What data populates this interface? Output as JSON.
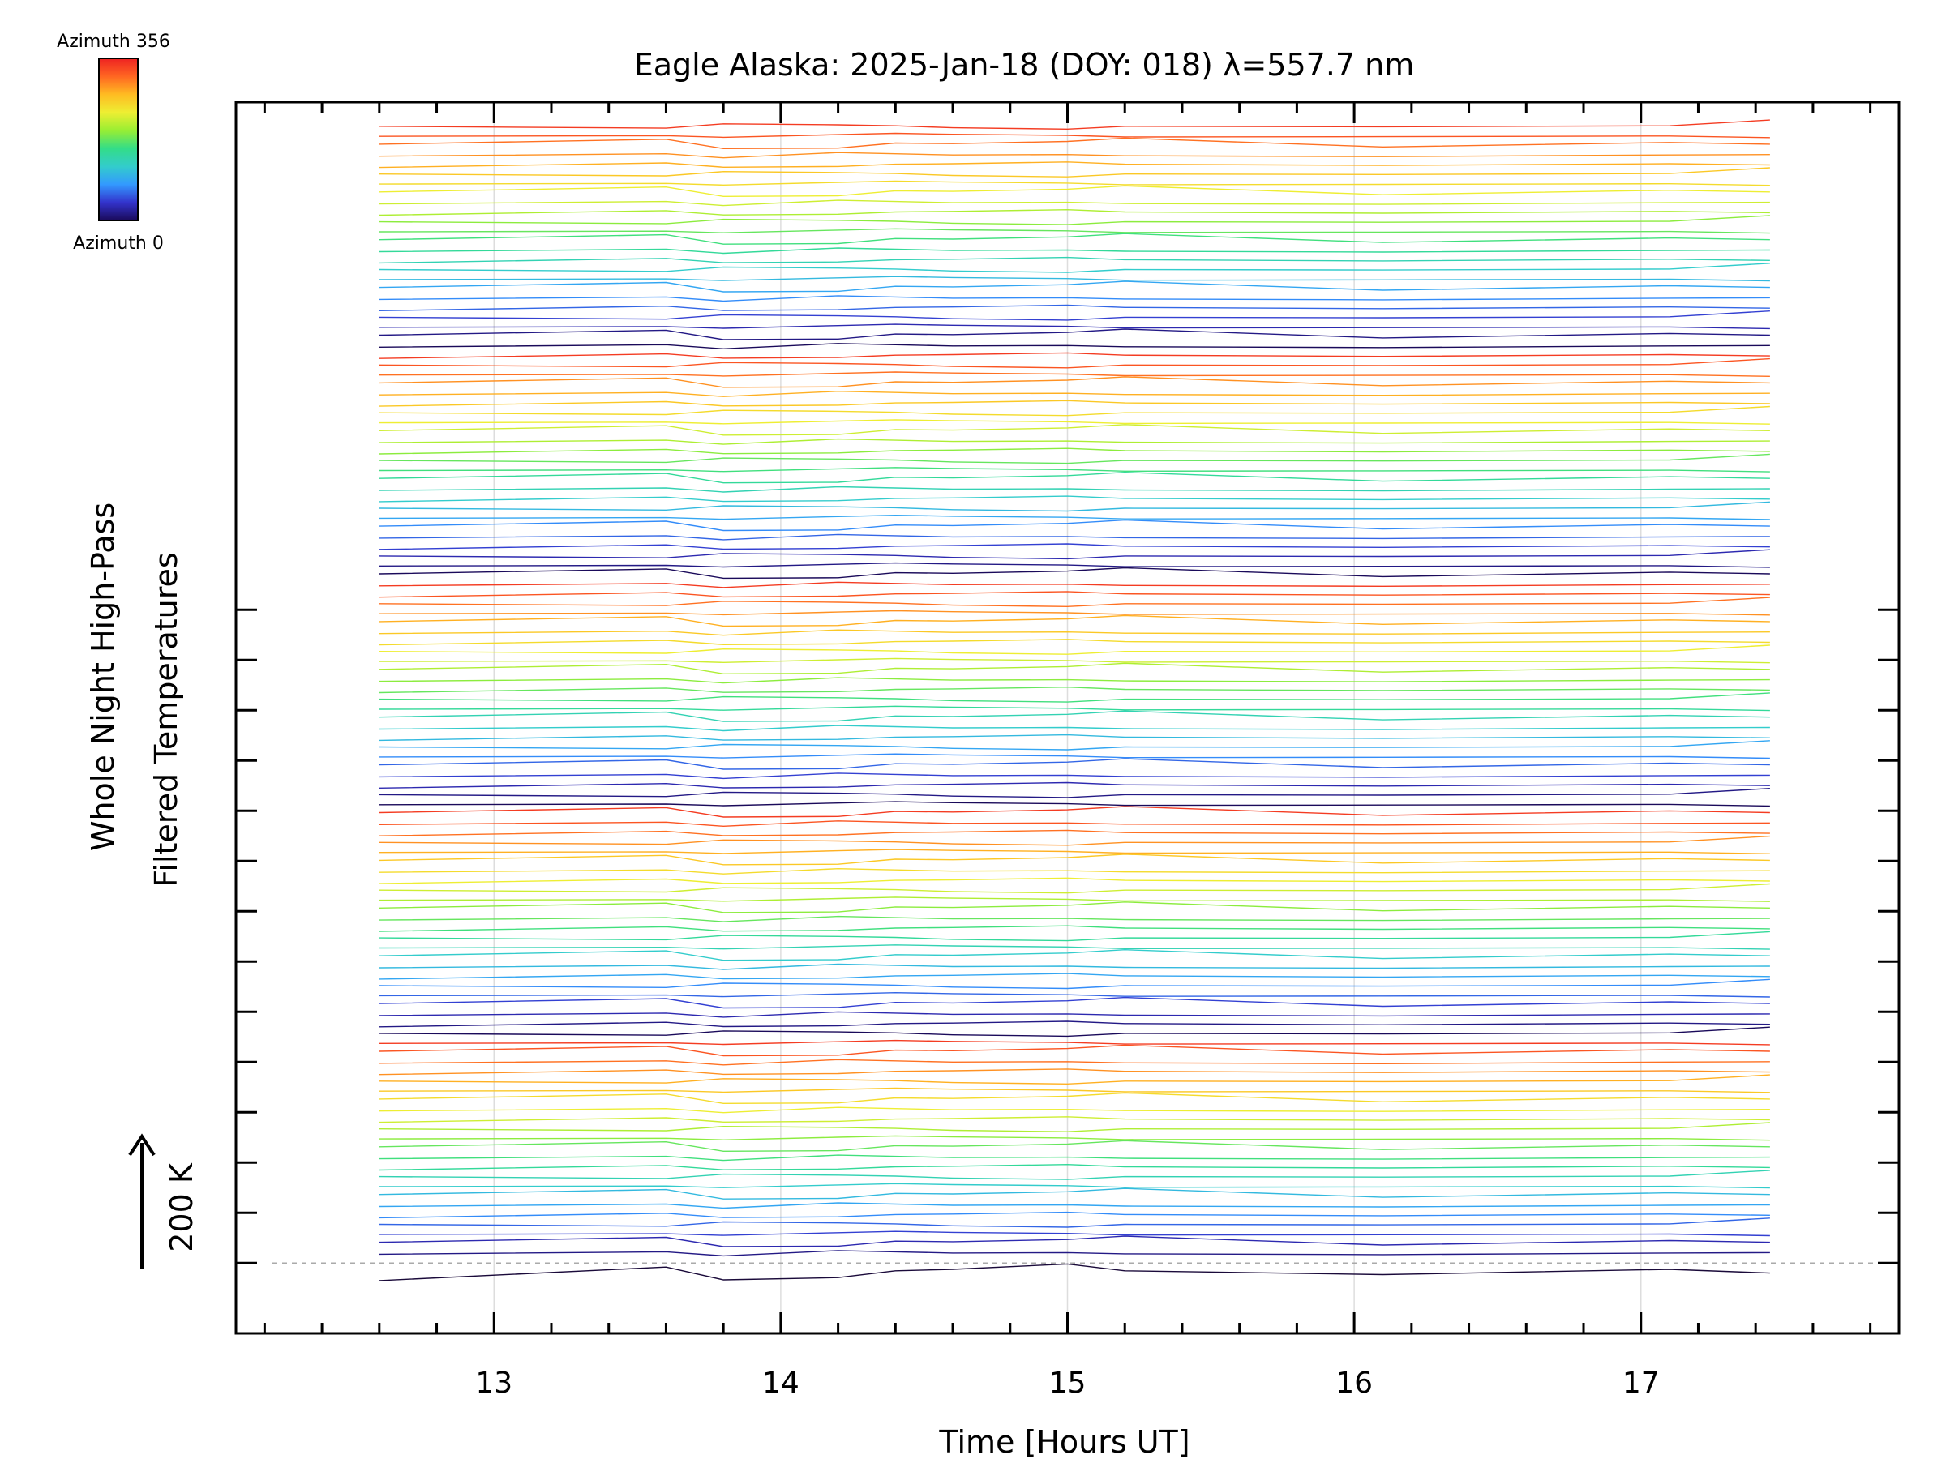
{
  "chart_data": {
    "type": "line",
    "title": "Eagle Alaska: 2025-Jan-18 (DOY: 018) λ=557.7 nm",
    "xlabel": "Time [Hours UT]",
    "ylabel_line1": "Whole Night High-Pass",
    "ylabel_line2": "Filtered Temperatures",
    "scale_label": "200 K",
    "xlim": [
      12.1,
      17.9
    ],
    "x_ticks": [
      13,
      14,
      15,
      16,
      17
    ],
    "x_tick_labels": [
      "13",
      "14",
      "15",
      "16",
      "17"
    ],
    "x_minor_step": 0.2,
    "ylim": [
      -280,
      4620
    ],
    "y_major_tick_step": 200,
    "y_major_ticks_count": 14,
    "grid_x": true,
    "baseline_dashed": true,
    "colorbar": {
      "top_label": "Azimuth 356",
      "bottom_label": "Azimuth 0",
      "colors": [
        "#1a0a5a",
        "#3333cc",
        "#3399ff",
        "#33cccc",
        "#33dd88",
        "#99ee33",
        "#eeee33",
        "#ffbb22",
        "#ff6622",
        "#ee2222"
      ]
    },
    "x": [
      12.6,
      13.6,
      13.8,
      14.2,
      14.4,
      14.6,
      15.0,
      15.2,
      16.1,
      17.1,
      17.45
    ],
    "series_count": 120,
    "series_spacing_K": 38,
    "series_offsets_sample_K": [
      [
        -10,
        8,
        -9,
        -6,
        3,
        5,
        12,
        3,
        -2,
        5,
        0
      ],
      [
        -2,
        4,
        -6,
        7,
        4,
        1,
        2,
        -1,
        -3,
        1,
        2
      ],
      [
        3,
        12,
        -5,
        -4,
        5,
        4,
        8,
        14,
        -2,
        6,
        3
      ],
      [
        0,
        2,
        -3,
        5,
        9,
        6,
        3,
        -2,
        -1,
        1,
        -4
      ],
      [
        1,
        -3,
        6,
        4,
        2,
        -2,
        -5,
        1,
        0,
        2,
        14
      ]
    ],
    "series_colors_note": "Rainbow by azimuth, cycling 0→356 repeatedly from bottom to top"
  }
}
